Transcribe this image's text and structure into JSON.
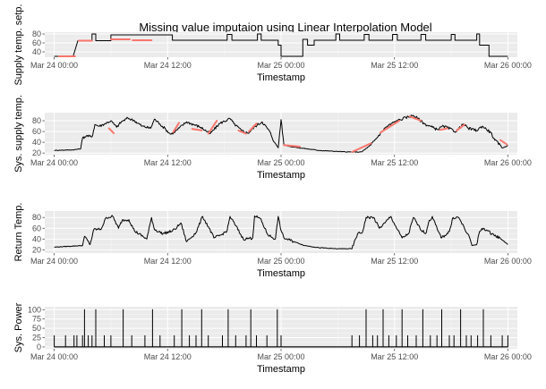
{
  "chart_data": {
    "title": "Missing value imputaion using Linear Interpolation Model",
    "colors": {
      "panel_bg": "#ebebeb",
      "grid": "#ffffff",
      "observed": "#000000",
      "imputed": "#f8766d"
    },
    "x_ticks": [
      "Mar 24 00:00",
      "Mar 24 12:00",
      "Mar 25 00:00",
      "Mar 25 12:00",
      "Mar 26 00:00"
    ],
    "x_ticks_hours": [
      0,
      12,
      24,
      36,
      48
    ],
    "xlim_hours": [
      -1,
      49
    ],
    "panels": [
      {
        "type": "line",
        "ylabel": "Supply temp. setp.",
        "xlabel": "Timestamp",
        "yticks": [
          40,
          60,
          80
        ],
        "ylim": [
          28,
          84
        ],
        "shape": "step",
        "observed": [
          [
            0,
            30
          ],
          [
            2,
            30
          ],
          [
            2.5,
            65
          ],
          [
            4,
            65
          ],
          [
            4,
            80
          ],
          [
            4.4,
            80
          ],
          [
            4.4,
            65
          ],
          [
            6,
            65
          ],
          [
            6,
            78
          ],
          [
            12.5,
            78
          ],
          [
            12.5,
            66
          ],
          [
            18.3,
            66
          ],
          [
            18.3,
            79
          ],
          [
            18.8,
            79
          ],
          [
            18.8,
            66
          ],
          [
            21.5,
            66
          ],
          [
            21.5,
            80
          ],
          [
            21.9,
            80
          ],
          [
            21.9,
            66
          ],
          [
            23.7,
            66
          ],
          [
            23.7,
            55
          ],
          [
            24,
            55
          ],
          [
            24,
            30
          ],
          [
            26.3,
            30
          ],
          [
            26.3,
            68
          ],
          [
            26.8,
            68
          ],
          [
            26.8,
            55
          ],
          [
            27.5,
            55
          ],
          [
            27.5,
            66
          ],
          [
            29.8,
            66
          ],
          [
            29.8,
            80
          ],
          [
            30.2,
            80
          ],
          [
            30.2,
            66
          ],
          [
            32.8,
            66
          ],
          [
            32.8,
            79
          ],
          [
            33.3,
            79
          ],
          [
            33.3,
            66
          ],
          [
            35.8,
            66
          ],
          [
            35.8,
            79
          ],
          [
            36.3,
            79
          ],
          [
            36.3,
            66
          ],
          [
            38.8,
            66
          ],
          [
            38.8,
            79
          ],
          [
            39.3,
            79
          ],
          [
            39.3,
            66
          ],
          [
            42,
            66
          ],
          [
            42,
            79
          ],
          [
            42.4,
            79
          ],
          [
            42.4,
            66
          ],
          [
            44.7,
            66
          ],
          [
            44.7,
            80
          ],
          [
            45,
            80
          ],
          [
            45,
            55
          ],
          [
            46,
            55
          ],
          [
            46,
            30
          ],
          [
            48,
            30
          ]
        ],
        "imputed": [
          [
            [
              0.5,
              30
            ],
            [
              2.2,
              30
            ]
          ],
          [
            [
              2.6,
              65
            ],
            [
              4,
              65
            ]
          ],
          [
            [
              6,
              68
            ],
            [
              8,
              68
            ]
          ],
          [
            [
              8.3,
              66
            ],
            [
              10.3,
              66
            ]
          ]
        ]
      },
      {
        "type": "line",
        "ylabel": "Sys. supply temp.",
        "xlabel": "Timestamp",
        "yticks": [
          20,
          40,
          60,
          80
        ],
        "ylim": [
          17,
          95
        ],
        "shape": "noisy",
        "observed": [
          [
            0,
            25
          ],
          [
            2,
            26
          ],
          [
            2.8,
            28
          ],
          [
            3,
            48
          ],
          [
            3.4,
            52
          ],
          [
            4,
            50
          ],
          [
            4.3,
            73
          ],
          [
            4.8,
            70
          ],
          [
            5.3,
            74
          ],
          [
            6,
            80
          ],
          [
            6.6,
            68
          ],
          [
            7.1,
            78
          ],
          [
            7.8,
            85
          ],
          [
            8.5,
            80
          ],
          [
            9.3,
            70
          ],
          [
            10.2,
            66
          ],
          [
            10.6,
            83
          ],
          [
            11.2,
            74
          ],
          [
            11.8,
            64
          ],
          [
            12.3,
            55
          ],
          [
            12.8,
            60
          ],
          [
            14,
            78
          ],
          [
            15.5,
            68
          ],
          [
            16.5,
            56
          ],
          [
            17.5,
            75
          ],
          [
            18.6,
            84
          ],
          [
            19,
            75
          ],
          [
            19.8,
            62
          ],
          [
            20.5,
            57
          ],
          [
            21.3,
            70
          ],
          [
            22,
            78
          ],
          [
            22.8,
            60
          ],
          [
            23.3,
            40
          ],
          [
            23.7,
            30
          ],
          [
            24,
            82
          ],
          [
            24.3,
            35
          ],
          [
            25,
            32
          ],
          [
            28,
            25
          ],
          [
            31,
            22
          ],
          [
            32.5,
            22
          ],
          [
            33.5,
            35
          ],
          [
            35,
            67
          ],
          [
            36,
            78
          ],
          [
            37.2,
            86
          ],
          [
            38,
            90
          ],
          [
            38.5,
            84
          ],
          [
            39.2,
            74
          ],
          [
            40.5,
            64
          ],
          [
            41.2,
            70
          ],
          [
            42.5,
            60
          ],
          [
            43.3,
            74
          ],
          [
            43.8,
            66
          ],
          [
            44.7,
            62
          ],
          [
            45.3,
            70
          ],
          [
            46.2,
            58
          ],
          [
            46.6,
            44
          ],
          [
            47.5,
            30
          ],
          [
            48,
            34
          ]
        ],
        "imputed": [
          [
            [
              5.8,
              66
            ],
            [
              6.3,
              57
            ]
          ],
          [
            [
              12.6,
              59
            ],
            [
              13.2,
              76
            ]
          ],
          [
            [
              14.6,
              65
            ],
            [
              15.6,
              62
            ]
          ],
          [
            [
              16.3,
              56
            ],
            [
              17.2,
              80
            ]
          ],
          [
            [
              19.5,
              62
            ],
            [
              20.3,
              56
            ]
          ],
          [
            [
              20.6,
              60
            ],
            [
              21.4,
              75
            ]
          ],
          [
            [
              24.3,
              35
            ],
            [
              26,
              32
            ]
          ],
          [
            [
              31.5,
              22
            ],
            [
              33.5,
              38
            ]
          ],
          [
            [
              34.5,
              58
            ],
            [
              36.5,
              80
            ]
          ],
          [
            [
              37.6,
              88
            ],
            [
              38.8,
              80
            ]
          ],
          [
            [
              40.8,
              63
            ],
            [
              41.6,
              66
            ]
          ],
          [
            [
              42.6,
              62
            ],
            [
              43.4,
              73
            ]
          ],
          [
            [
              47.2,
              44
            ],
            [
              47.9,
              36
            ]
          ]
        ]
      },
      {
        "type": "line",
        "ylabel": "Return Temp.",
        "xlabel": "Timestamp",
        "yticks": [
          20,
          40,
          60,
          80
        ],
        "ylim": [
          14,
          92
        ],
        "shape": "noisy",
        "observed": [
          [
            0,
            25
          ],
          [
            3,
            28
          ],
          [
            3.2,
            45
          ],
          [
            3.8,
            30
          ],
          [
            4.2,
            58
          ],
          [
            4.9,
            58
          ],
          [
            5,
            60
          ],
          [
            5.5,
            80
          ],
          [
            6.2,
            82
          ],
          [
            6.8,
            60
          ],
          [
            7.2,
            75
          ],
          [
            7.9,
            76
          ],
          [
            8.5,
            55
          ],
          [
            9.8,
            40
          ],
          [
            10.3,
            80
          ],
          [
            10.6,
            58
          ],
          [
            11.5,
            50
          ],
          [
            12.5,
            55
          ],
          [
            13,
            62
          ],
          [
            13.4,
            70
          ],
          [
            14,
            35
          ],
          [
            15,
            52
          ],
          [
            15.7,
            82
          ],
          [
            16.4,
            60
          ],
          [
            16.9,
            42
          ],
          [
            17.7,
            48
          ],
          [
            18.3,
            56
          ],
          [
            18.6,
            82
          ],
          [
            19.2,
            65
          ],
          [
            20,
            40
          ],
          [
            21,
            42
          ],
          [
            21.2,
            83
          ],
          [
            21.8,
            78
          ],
          [
            22.6,
            48
          ],
          [
            23.4,
            40
          ],
          [
            23.7,
            82
          ],
          [
            24,
            56
          ],
          [
            24.3,
            42
          ],
          [
            25.4,
            35
          ],
          [
            26.5,
            28
          ],
          [
            28,
            24
          ],
          [
            29.8,
            22
          ],
          [
            31.5,
            22
          ],
          [
            32.1,
            50
          ],
          [
            32.6,
            52
          ],
          [
            33,
            80
          ],
          [
            33.8,
            80
          ],
          [
            34.4,
            60
          ],
          [
            35,
            70
          ],
          [
            35.6,
            82
          ],
          [
            36.3,
            58
          ],
          [
            36.8,
            42
          ],
          [
            37.5,
            50
          ],
          [
            38,
            80
          ],
          [
            38.7,
            60
          ],
          [
            39.3,
            50
          ],
          [
            39.6,
            70
          ],
          [
            40,
            82
          ],
          [
            40.6,
            55
          ],
          [
            41,
            42
          ],
          [
            41.8,
            54
          ],
          [
            42.2,
            80
          ],
          [
            42.8,
            80
          ],
          [
            43.4,
            60
          ],
          [
            44,
            40
          ],
          [
            44.2,
            28
          ],
          [
            44.7,
            30
          ],
          [
            45,
            54
          ],
          [
            45.4,
            60
          ],
          [
            46.5,
            48
          ],
          [
            47.3,
            40
          ],
          [
            48,
            30
          ]
        ],
        "imputed": []
      },
      {
        "type": "bar",
        "ylabel": "Sys. Power",
        "xlabel": "Timestamp",
        "yticks": [
          0,
          25,
          50,
          75,
          100
        ],
        "ylim": [
          -5,
          108
        ],
        "shape": "spikes",
        "observed": [
          [
            0,
            30
          ],
          [
            1.2,
            30
          ],
          [
            2.1,
            30
          ],
          [
            2.4,
            30
          ],
          [
            3,
            30
          ],
          [
            3.2,
            100
          ],
          [
            3.6,
            30
          ],
          [
            4,
            30
          ],
          [
            4.4,
            100
          ],
          [
            5.3,
            30
          ],
          [
            6,
            30
          ],
          [
            7.3,
            100
          ],
          [
            8.2,
            30
          ],
          [
            9.6,
            30
          ],
          [
            10.4,
            100
          ],
          [
            11.2,
            30
          ],
          [
            12.7,
            30
          ],
          [
            13.5,
            100
          ],
          [
            14.3,
            30
          ],
          [
            15,
            30
          ],
          [
            15.6,
            100
          ],
          [
            16.3,
            30
          ],
          [
            17.8,
            30
          ],
          [
            18.4,
            100
          ],
          [
            19.2,
            30
          ],
          [
            20.3,
            30
          ],
          [
            20.8,
            100
          ],
          [
            21.4,
            30
          ],
          [
            22.5,
            30
          ],
          [
            23.6,
            100
          ],
          [
            24,
            30
          ],
          [
            31.5,
            30
          ],
          [
            32.3,
            30
          ],
          [
            33,
            100
          ],
          [
            33.7,
            30
          ],
          [
            34.2,
            30
          ],
          [
            34.8,
            100
          ],
          [
            35.4,
            30
          ],
          [
            36.2,
            30
          ],
          [
            36.8,
            100
          ],
          [
            37.4,
            30
          ],
          [
            38.3,
            30
          ],
          [
            39,
            100
          ],
          [
            39.8,
            30
          ],
          [
            40.5,
            30
          ],
          [
            41,
            100
          ],
          [
            41.8,
            30
          ],
          [
            42.3,
            30
          ],
          [
            43,
            100
          ],
          [
            43.6,
            30
          ],
          [
            44.1,
            30
          ],
          [
            44.8,
            30
          ],
          [
            45.4,
            100
          ],
          [
            46.2,
            30
          ],
          [
            47.4,
            30
          ],
          [
            48,
            30
          ]
        ],
        "imputed": []
      }
    ]
  }
}
